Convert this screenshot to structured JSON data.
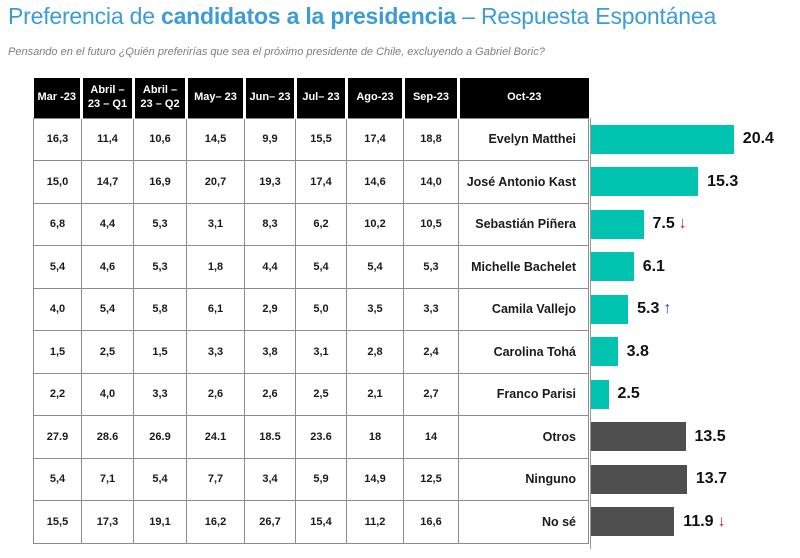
{
  "title": {
    "prefix": "Preferencia de ",
    "bold": "candidatos a la presidencia",
    "suffix": " – Respuesta Espontánea"
  },
  "subtitle": "Pensando en el futuro ¿Quién preferirías que sea el próximo presidente de Chile, excluyendo a Gabriel Boric?",
  "colors": {
    "title_blue": "#3B9CD9",
    "bar_teal": "#00C4B0",
    "bar_gray": "#4F4F4F",
    "arrow_red": "#C0272D",
    "arrow_blue": "#2F3BC0",
    "header_bg": "#000000",
    "header_text": "#ffffff"
  },
  "table": {
    "columns": [
      "Mar -23",
      "Abril – 23 – Q1",
      "Abril – 23 – Q2",
      "May– 23",
      "Jun– 23",
      "Jul– 23",
      "Ago-23",
      "Sep-23",
      "Oct-23"
    ],
    "rows": [
      {
        "candidate": "Evelyn Matthei",
        "values": [
          "16,3",
          "11,4",
          "10,6",
          "14,5",
          "9,9",
          "15,5",
          "17,4",
          "18,8"
        ],
        "oct_value": 20.4,
        "oct_label": "20.4",
        "bar_color": "teal",
        "arrow": null
      },
      {
        "candidate": "José Antonio Kast",
        "values": [
          "15,0",
          "14,7",
          "16,9",
          "20,7",
          "19,3",
          "17,4",
          "14,6",
          "14,0"
        ],
        "oct_value": 15.3,
        "oct_label": "15.3",
        "bar_color": "teal",
        "arrow": null
      },
      {
        "candidate": "Sebastián Piñera",
        "values": [
          "6,8",
          "4,4",
          "5,3",
          "3,1",
          "8,3",
          "6,2",
          "10,2",
          "10,5"
        ],
        "oct_value": 7.5,
        "oct_label": "7.5",
        "bar_color": "teal",
        "arrow": "down"
      },
      {
        "candidate": "Michelle Bachelet",
        "values": [
          "5,4",
          "4,6",
          "5,3",
          "1,8",
          "4,4",
          "5,4",
          "5,4",
          "5,3"
        ],
        "oct_value": 6.1,
        "oct_label": "6.1",
        "bar_color": "teal",
        "arrow": null
      },
      {
        "candidate": "Camila Vallejo",
        "values": [
          "4,0",
          "5,4",
          "5,8",
          "6,1",
          "2,9",
          "5,0",
          "3,5",
          "3,3"
        ],
        "oct_value": 5.3,
        "oct_label": "5.3",
        "bar_color": "teal",
        "arrow": "up"
      },
      {
        "candidate": "Carolina Tohá",
        "values": [
          "1,5",
          "2,5",
          "1,5",
          "3,3",
          "3,8",
          "3,1",
          "2,8",
          "2,4"
        ],
        "oct_value": 3.8,
        "oct_label": "3.8",
        "bar_color": "teal",
        "arrow": null
      },
      {
        "candidate": "Franco Parisi",
        "values": [
          "2,2",
          "4,0",
          "3,3",
          "2,6",
          "2,6",
          "2,5",
          "2,1",
          "2,7"
        ],
        "oct_value": 2.5,
        "oct_label": "2.5",
        "bar_color": "teal",
        "arrow": null
      },
      {
        "candidate": "Otros",
        "values": [
          "27.9",
          "28.6",
          "26.9",
          "24.1",
          "18.5",
          "23.6",
          "18",
          "14"
        ],
        "oct_value": 13.5,
        "oct_label": "13.5",
        "bar_color": "gray",
        "arrow": null
      },
      {
        "candidate": "Ninguno",
        "values": [
          "5,4",
          "7,1",
          "5,4",
          "7,7",
          "3,4",
          "5,9",
          "14,9",
          "12,5"
        ],
        "oct_value": 13.7,
        "oct_label": "13.7",
        "bar_color": "gray",
        "arrow": null
      },
      {
        "candidate": "No sé",
        "values": [
          "15,5",
          "17,3",
          "19,1",
          "16,2",
          "26,7",
          "15,4",
          "11,2",
          "16,6"
        ],
        "oct_value": 11.9,
        "oct_label": "11.9",
        "bar_color": "gray",
        "arrow": "down"
      }
    ]
  },
  "chart_data": {
    "type": "bar",
    "orientation": "horizontal",
    "title": "Preferencia de candidatos a la presidencia – Respuesta Espontánea",
    "subtitle": "Pensando en el futuro ¿Quién preferirías que sea el próximo presidente de Chile, excluyendo a Gabriel Boric?",
    "categories": [
      "Evelyn Matthei",
      "José Antonio Kast",
      "Sebastián Piñera",
      "Michelle Bachelet",
      "Camila Vallejo",
      "Carolina Tohá",
      "Franco Parisi",
      "Otros",
      "Ninguno",
      "No sé"
    ],
    "bar_series_name": "Oct-23",
    "values": [
      20.4,
      15.3,
      7.5,
      6.1,
      5.3,
      3.8,
      2.5,
      13.5,
      13.7,
      11.9
    ],
    "xlim": [
      0,
      22
    ],
    "grid": false,
    "legend": false,
    "bar_colors": [
      "#00C4B0",
      "#00C4B0",
      "#00C4B0",
      "#00C4B0",
      "#00C4B0",
      "#00C4B0",
      "#00C4B0",
      "#4F4F4F",
      "#4F4F4F",
      "#4F4F4F"
    ],
    "trend_arrows": {
      "Sebastián Piñera": "down",
      "Camila Vallejo": "up",
      "No sé": "down"
    },
    "history_columns": [
      "Mar -23",
      "Abril – 23 – Q1",
      "Abril – 23 – Q2",
      "May– 23",
      "Jun– 23",
      "Jul– 23",
      "Ago-23",
      "Sep-23"
    ],
    "history_series": [
      {
        "name": "Evelyn Matthei",
        "values": [
          16.3,
          11.4,
          10.6,
          14.5,
          9.9,
          15.5,
          17.4,
          18.8
        ]
      },
      {
        "name": "José Antonio Kast",
        "values": [
          15.0,
          14.7,
          16.9,
          20.7,
          19.3,
          17.4,
          14.6,
          14.0
        ]
      },
      {
        "name": "Sebastián Piñera",
        "values": [
          6.8,
          4.4,
          5.3,
          3.1,
          8.3,
          6.2,
          10.2,
          10.5
        ]
      },
      {
        "name": "Michelle Bachelet",
        "values": [
          5.4,
          4.6,
          5.3,
          1.8,
          4.4,
          5.4,
          5.4,
          5.3
        ]
      },
      {
        "name": "Camila Vallejo",
        "values": [
          4.0,
          5.4,
          5.8,
          6.1,
          2.9,
          5.0,
          3.5,
          3.3
        ]
      },
      {
        "name": "Carolina Tohá",
        "values": [
          1.5,
          2.5,
          1.5,
          3.3,
          3.8,
          3.1,
          2.8,
          2.4
        ]
      },
      {
        "name": "Franco Parisi",
        "values": [
          2.2,
          4.0,
          3.3,
          2.6,
          2.6,
          2.5,
          2.1,
          2.7
        ]
      },
      {
        "name": "Otros",
        "values": [
          27.9,
          28.6,
          26.9,
          24.1,
          18.5,
          23.6,
          18,
          14
        ]
      },
      {
        "name": "Ninguno",
        "values": [
          5.4,
          7.1,
          5.4,
          7.7,
          3.4,
          5.9,
          14.9,
          12.5
        ]
      },
      {
        "name": "No sé",
        "values": [
          15.5,
          17.3,
          19.1,
          16.2,
          26.7,
          15.4,
          11.2,
          16.6
        ]
      }
    ]
  }
}
